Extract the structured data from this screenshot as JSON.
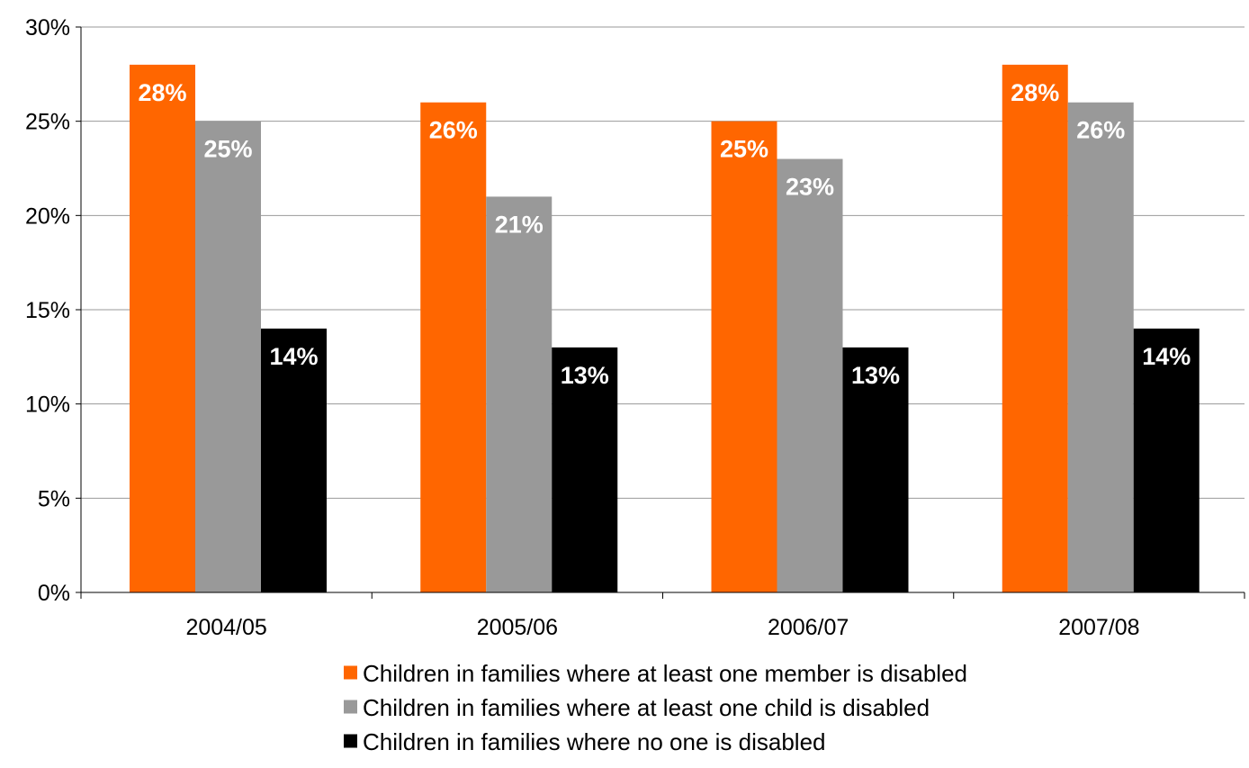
{
  "chart_data": {
    "type": "bar",
    "title": "",
    "xlabel": "",
    "ylabel": "",
    "categories": [
      "2004/05",
      "2005/06",
      "2006/07",
      "2007/08"
    ],
    "series": [
      {
        "name": "Children in families where at least one member is disabled",
        "values": [
          28,
          26,
          25,
          28
        ],
        "labels": [
          "28%",
          "26%",
          "25%",
          "28%"
        ],
        "color": "#ff6600"
      },
      {
        "name": "Children in families where at least one child is disabled",
        "values": [
          25,
          21,
          23,
          26
        ],
        "labels": [
          "25%",
          "21%",
          "23%",
          "26%"
        ],
        "color": "#999999"
      },
      {
        "name": "Children in families where no one is disabled",
        "values": [
          14,
          13,
          13,
          14
        ],
        "labels": [
          "14%",
          "13%",
          "13%",
          "14%"
        ],
        "color": "#000000"
      }
    ],
    "ylim": [
      0,
      30
    ],
    "yticks": [
      0,
      5,
      10,
      15,
      20,
      25,
      30
    ],
    "ytick_labels": [
      "0%",
      "5%",
      "10%",
      "15%",
      "20%",
      "25%",
      "30%"
    ],
    "grid": true,
    "legend_position": "bottom",
    "data_label_color": "#ffffff",
    "axis_color": "#000000",
    "grid_color": "#999999"
  }
}
